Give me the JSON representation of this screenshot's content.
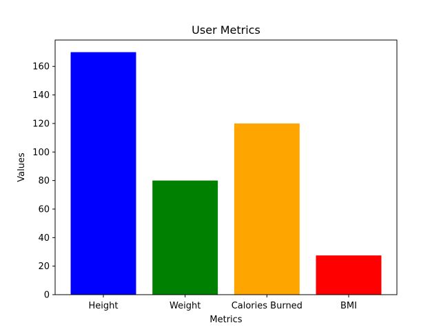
{
  "chart_data": {
    "type": "bar",
    "title": "User Metrics",
    "xlabel": "Metrics",
    "ylabel": "Values",
    "categories": [
      "Height",
      "Weight",
      "Calories Burned",
      "BMI"
    ],
    "values": [
      170,
      80,
      120,
      27.5
    ],
    "colors": [
      "#0000ff",
      "#008000",
      "#ffa500",
      "#ff0000"
    ],
    "ylim": [
      0,
      178.5
    ],
    "yticks": [
      0,
      20,
      40,
      60,
      80,
      100,
      120,
      140,
      160
    ],
    "grid": false,
    "legend": "none"
  }
}
